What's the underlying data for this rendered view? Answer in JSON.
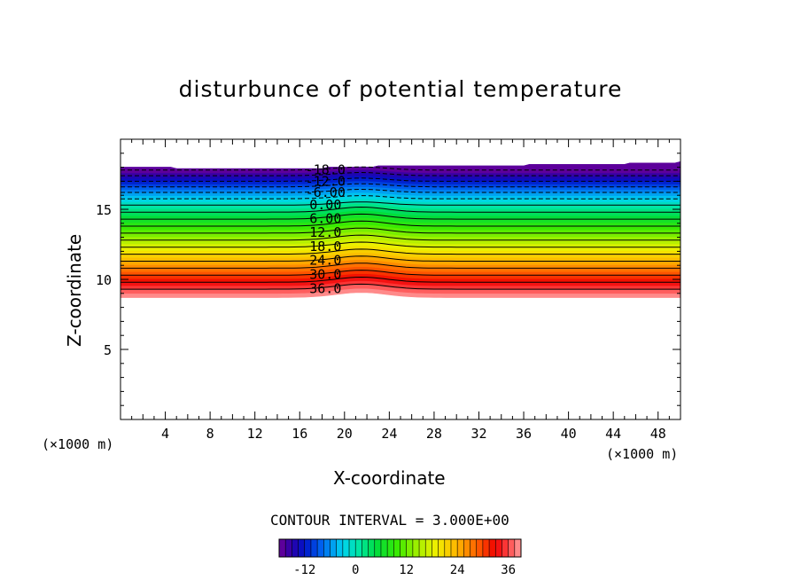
{
  "chart_data": {
    "type": "heatmap",
    "title": "disturbunce of potential temperature",
    "xlabel": "X-coordinate",
    "ylabel": "Z-coordinate",
    "x_unit": "(x1000 m)",
    "y_unit": "(x1000 m)",
    "xlim": [
      0,
      50
    ],
    "ylim": [
      0,
      20
    ],
    "x_ticks": [
      4,
      8,
      12,
      16,
      20,
      24,
      28,
      32,
      36,
      40,
      44,
      48
    ],
    "y_ticks": [
      5,
      10,
      15
    ],
    "contour_interval_text": "CONTOUR INTERVAL = 3.000E+00",
    "contour_interval": 3.0,
    "colorbar": {
      "ticks": [
        -12,
        0,
        12,
        24,
        36
      ],
      "min": -18,
      "max": 39
    },
    "contour_labels": [
      {
        "text": "-18.0",
        "value": -18
      },
      {
        "text": "-12.0",
        "value": -12
      },
      {
        "text": "-6.00",
        "value": -6
      },
      {
        "text": "0.00",
        "value": 0
      },
      {
        "text": "6.00",
        "value": 6
      },
      {
        "text": "12.0",
        "value": 12
      },
      {
        "text": "18.0",
        "value": 18
      },
      {
        "text": "24.0",
        "value": 24
      },
      {
        "text": "30.0",
        "value": 30
      },
      {
        "text": "36.0",
        "value": 36
      }
    ],
    "field_bottom_z": [
      8.7,
      8.7,
      8.7,
      8.6,
      8.6,
      8.6,
      8.7,
      8.8,
      8.8,
      8.8,
      8.8,
      8.8
    ],
    "field_top_z": [
      18.0,
      17.9,
      17.9,
      17.9,
      18.0,
      18.1,
      18.1,
      18.1,
      18.2,
      18.2,
      18.3,
      18.4
    ],
    "levels_at_x_edge": [
      {
        "value": 39,
        "z": 8.7
      },
      {
        "value": 36,
        "z": 9.3
      },
      {
        "value": 30,
        "z": 10.3
      },
      {
        "value": 24,
        "z": 11.3
      },
      {
        "value": 18,
        "z": 12.3
      },
      {
        "value": 12,
        "z": 13.3
      },
      {
        "value": 6,
        "z": 14.3
      },
      {
        "value": 0,
        "z": 15.3
      },
      {
        "value": -6,
        "z": 16.2
      },
      {
        "value": -12,
        "z": 17.0
      },
      {
        "value": -18,
        "z": 17.8
      }
    ],
    "bump": {
      "x_center": 21.5,
      "amplitude_z": 0.45
    }
  },
  "colors": {
    "background": "#ffffff",
    "axis": "#000000",
    "contour_line": "#000000"
  },
  "axis_labels": {
    "x_unit_text": "(×1000 m)",
    "y_unit_text": "(×1000 m)"
  }
}
